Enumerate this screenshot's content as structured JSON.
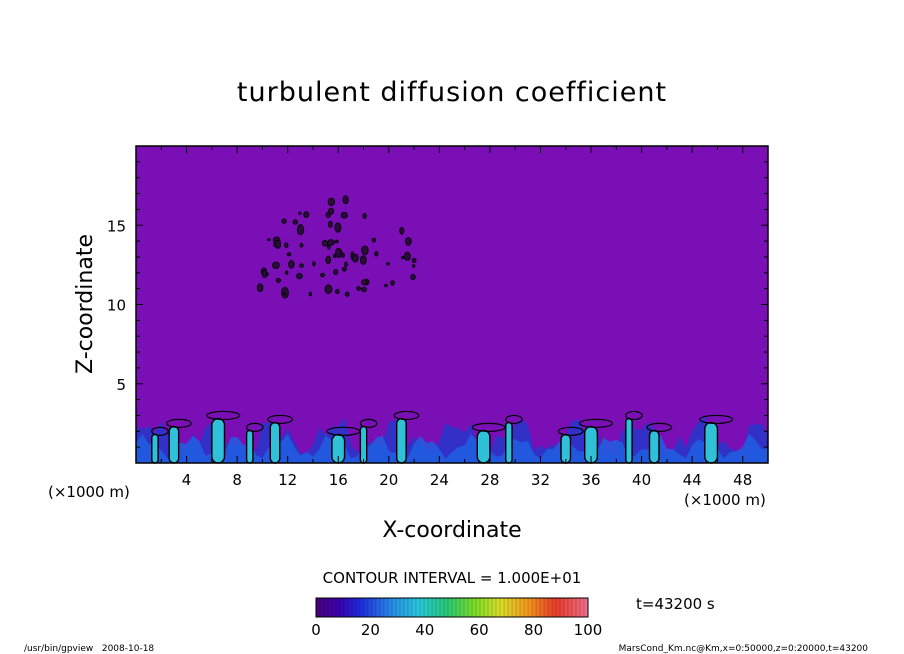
{
  "chart_data": {
    "type": "heatmap",
    "title": "turbulent diffusion coefficient",
    "xlabel": "X-coordinate",
    "ylabel": "Z-coordinate",
    "x_unit": "(×1000 m)",
    "xlim": [
      0,
      50
    ],
    "ylim": [
      0,
      20
    ],
    "x_ticks": [
      4,
      8,
      12,
      16,
      20,
      24,
      28,
      32,
      36,
      40,
      44,
      48
    ],
    "y_ticks": [
      5,
      10,
      15
    ],
    "contour_interval": "CONTOUR INTERVAL = 1.000E+01",
    "time": "t=43200 s",
    "colorbar": {
      "min": 0,
      "max": 100,
      "ticks": [
        0,
        20,
        40,
        60,
        80,
        100
      ]
    },
    "background_value_color": "#7a0fb5",
    "features": {
      "boundary_layer_top_km": 3,
      "plume_columns_x_km": [
        1.5,
        3,
        6.5,
        9,
        11,
        16,
        18,
        21,
        27.5,
        29.5,
        34,
        36,
        39,
        41,
        45.5
      ],
      "upper_patch_x_km": [
        9.5,
        22.5
      ],
      "upper_patch_z_km": [
        10.5,
        16.7
      ]
    }
  },
  "footer": {
    "left": "/usr/bin/gpview   2008-10-18",
    "right": "MarsCond_Km.nc@Km,x=0:50000,z=0:20000,t=43200"
  }
}
